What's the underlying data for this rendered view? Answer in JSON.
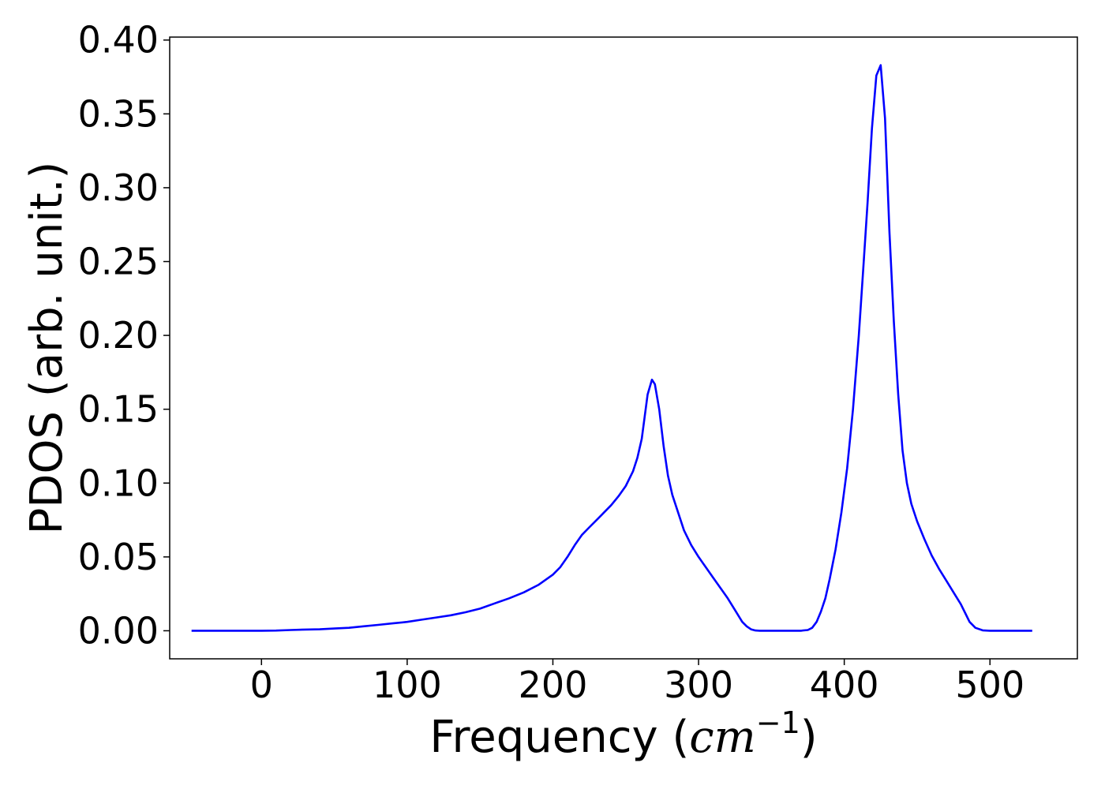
{
  "chart_data": {
    "type": "line",
    "xlabel_prefix": "Frequency (",
    "xlabel_unit": "cm",
    "xlabel_exponent": "−1",
    "xlabel_suffix": ")",
    "ylabel": "PDOS (arb. unit.)",
    "xlim": [
      -63,
      560
    ],
    "ylim": [
      -0.019,
      0.402
    ],
    "xticks": [
      0,
      100,
      200,
      300,
      400,
      500
    ],
    "xtick_labels": [
      "0",
      "100",
      "200",
      "300",
      "400",
      "500"
    ],
    "yticks": [
      0.0,
      0.05,
      0.1,
      0.15,
      0.2,
      0.25,
      0.3,
      0.35,
      0.4
    ],
    "ytick_labels": [
      "0.00",
      "0.05",
      "0.10",
      "0.15",
      "0.20",
      "0.25",
      "0.30",
      "0.35",
      "0.40"
    ],
    "grid": false,
    "legend": "none",
    "series": [
      {
        "color": "#0000ff",
        "x": [
          -48,
          0,
          10,
          20,
          30,
          40,
          50,
          60,
          70,
          80,
          90,
          100,
          110,
          120,
          130,
          140,
          150,
          160,
          170,
          180,
          190,
          200,
          205,
          210,
          215,
          220,
          225,
          230,
          235,
          240,
          245,
          250,
          255,
          258,
          261,
          263,
          265,
          268,
          270,
          273,
          276,
          279,
          282,
          286,
          290,
          295,
          300,
          305,
          310,
          315,
          320,
          325,
          330,
          333,
          336,
          339,
          342,
          346,
          350,
          360,
          370,
          375,
          378,
          381,
          384,
          387,
          390,
          394,
          398,
          402,
          406,
          410,
          413,
          416,
          419,
          422,
          425,
          428,
          431,
          434,
          437,
          440,
          443,
          446,
          450,
          455,
          460,
          465,
          470,
          475,
          480,
          483,
          486,
          490,
          495,
          500,
          510,
          520,
          529
        ],
        "y": [
          0.0,
          0.0,
          0.0001,
          0.0005,
          0.0008,
          0.001,
          0.0015,
          0.002,
          0.003,
          0.004,
          0.005,
          0.006,
          0.0075,
          0.009,
          0.0105,
          0.0125,
          0.015,
          0.0185,
          0.022,
          0.026,
          0.031,
          0.038,
          0.043,
          0.05,
          0.058,
          0.065,
          0.07,
          0.075,
          0.08,
          0.085,
          0.091,
          0.098,
          0.108,
          0.117,
          0.13,
          0.145,
          0.16,
          0.17,
          0.167,
          0.15,
          0.125,
          0.105,
          0.092,
          0.08,
          0.068,
          0.058,
          0.05,
          0.043,
          0.036,
          0.029,
          0.022,
          0.014,
          0.006,
          0.003,
          0.001,
          0.0002,
          0.0,
          0.0,
          0.0,
          0.0,
          0.0,
          0.0005,
          0.002,
          0.006,
          0.013,
          0.022,
          0.035,
          0.055,
          0.08,
          0.11,
          0.15,
          0.2,
          0.245,
          0.29,
          0.34,
          0.376,
          0.383,
          0.347,
          0.27,
          0.21,
          0.16,
          0.122,
          0.1,
          0.086,
          0.074,
          0.062,
          0.051,
          0.042,
          0.034,
          0.026,
          0.018,
          0.012,
          0.006,
          0.002,
          0.0003,
          0.0,
          0.0,
          0.0,
          0.0
        ]
      }
    ]
  }
}
